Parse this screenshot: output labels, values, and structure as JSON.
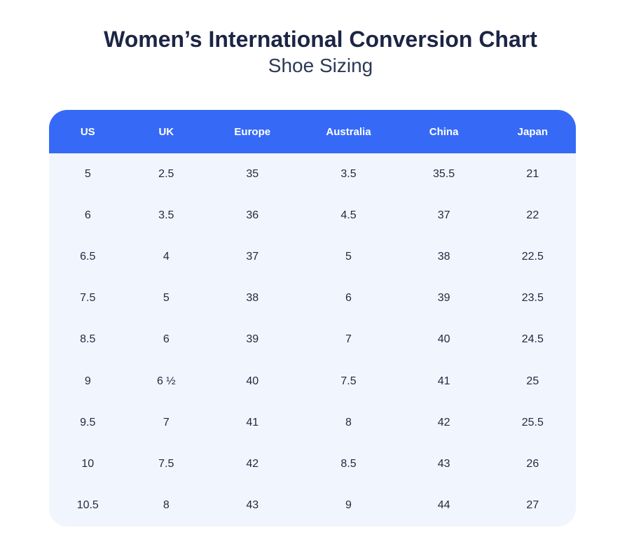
{
  "page": {
    "title": "Women’s International Conversion Chart",
    "subtitle": "Shoe Sizing"
  },
  "colors": {
    "page_bg": "#ffffff",
    "header_bg": "#366af6",
    "header_text": "#ffffff",
    "body_bg": "#f1f5fd",
    "body_text": "#1f2940",
    "title_text": "#1d2545",
    "subtitle_text": "#2b3a55"
  },
  "chart_data": {
    "type": "table",
    "title": "Women’s International Conversion Chart — Shoe Sizing",
    "columns": [
      "US",
      "UK",
      "Europe",
      "Australia",
      "China",
      "Japan"
    ],
    "column_width_percent": [
      14.7,
      15.1,
      17.6,
      18.9,
      17.3,
      16.4
    ],
    "rows": [
      [
        "5",
        "2.5",
        "35",
        "3.5",
        "35.5",
        "21"
      ],
      [
        "6",
        "3.5",
        "36",
        "4.5",
        "37",
        "22"
      ],
      [
        "6.5",
        "4",
        "37",
        "5",
        "38",
        "22.5"
      ],
      [
        "7.5",
        "5",
        "38",
        "6",
        "39",
        "23.5"
      ],
      [
        "8.5",
        "6",
        "39",
        "7",
        "40",
        "24.5"
      ],
      [
        "9",
        "6 ½",
        "40",
        "7.5",
        "41",
        "25"
      ],
      [
        "9.5",
        "7",
        "41",
        "8",
        "42",
        "25.5"
      ],
      [
        "10",
        "7.5",
        "42",
        "8.5",
        "43",
        "26"
      ],
      [
        "10.5",
        "8",
        "43",
        "9",
        "44",
        "27"
      ]
    ]
  }
}
